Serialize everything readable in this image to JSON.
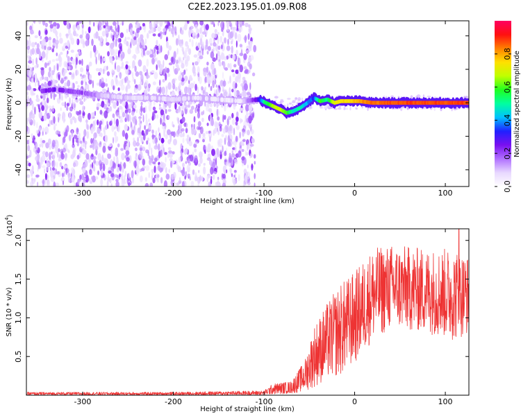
{
  "title": "C2E2.2023.195.01.09.R08",
  "chart_data": [
    {
      "type": "heatmap",
      "xlabel": "Height of straight line (km)",
      "ylabel": "Frequency (Hz)",
      "xlim": [
        -362,
        126
      ],
      "ylim": [
        -50,
        49
      ],
      "xticks": [
        -300,
        -200,
        -100,
        0,
        100
      ],
      "yticks": [
        -40,
        -20,
        0,
        20,
        40
      ],
      "colorbar": {
        "label": "Normalized spectral amplitude",
        "range": [
          0,
          1
        ],
        "ticks": [
          "0.0",
          "0.2",
          "0.4",
          "0.6",
          "0.8"
        ],
        "colormap": [
          "#ffffff",
          "#e8d8ff",
          "#b070ff",
          "#7a10f0",
          "#2020ff",
          "#00c0ff",
          "#00ffa0",
          "#20ff20",
          "#c0ff00",
          "#ffe000",
          "#ff8000",
          "#ff1010",
          "#ff0060"
        ]
      },
      "noise_region_km": [
        -362,
        -110
      ],
      "ridge": [
        {
          "x": -345,
          "y": 7,
          "amp": 0.22
        },
        {
          "x": -330,
          "y": 8,
          "amp": 0.25
        },
        {
          "x": -315,
          "y": 7,
          "amp": 0.2
        },
        {
          "x": -300,
          "y": 6,
          "amp": 0.2
        },
        {
          "x": -290,
          "y": 5,
          "amp": 0.16
        },
        {
          "x": -270,
          "y": 4,
          "amp": 0.08
        },
        {
          "x": -250,
          "y": 3,
          "amp": 0.08
        },
        {
          "x": -225,
          "y": 3,
          "amp": 0.05
        },
        {
          "x": -200,
          "y": 2,
          "amp": 0.08
        },
        {
          "x": -175,
          "y": 3,
          "amp": 0.06
        },
        {
          "x": -150,
          "y": 2,
          "amp": 0.05
        },
        {
          "x": -125,
          "y": 1,
          "amp": 0.05
        },
        {
          "x": -105,
          "y": 2,
          "amp": 0.3
        },
        {
          "x": -98,
          "y": 0,
          "amp": 0.55
        },
        {
          "x": -90,
          "y": -2,
          "amp": 0.65
        },
        {
          "x": -82,
          "y": -4,
          "amp": 0.7
        },
        {
          "x": -75,
          "y": -6,
          "amp": 0.6
        },
        {
          "x": -68,
          "y": -5,
          "amp": 0.45
        },
        {
          "x": -60,
          "y": -3,
          "amp": 0.5
        },
        {
          "x": -52,
          "y": 0,
          "amp": 0.4
        },
        {
          "x": -45,
          "y": 3,
          "amp": 0.35
        },
        {
          "x": -38,
          "y": 1,
          "amp": 0.6
        },
        {
          "x": -30,
          "y": 2,
          "amp": 0.5
        },
        {
          "x": -22,
          "y": 0,
          "amp": 0.7
        },
        {
          "x": -15,
          "y": 1,
          "amp": 0.75
        },
        {
          "x": -5,
          "y": 1,
          "amp": 0.75
        },
        {
          "x": 5,
          "y": 1,
          "amp": 0.8
        },
        {
          "x": 20,
          "y": 0,
          "amp": 0.85
        },
        {
          "x": 60,
          "y": 0,
          "amp": 0.88
        },
        {
          "x": 126,
          "y": 0,
          "amp": 0.88
        }
      ]
    },
    {
      "type": "line",
      "xlabel": "Height of straight line (km)",
      "ylabel": "SNR (10 * v/v)",
      "y_scale_label": "(x10",
      "y_scale_exp": "4",
      "y_scale_close": ")",
      "xlim": [
        -362,
        126
      ],
      "ylim": [
        0,
        2.15
      ],
      "xticks": [
        -300,
        -200,
        -100,
        0,
        100
      ],
      "yticks": [
        0.5,
        1.0,
        1.5,
        2.0
      ],
      "ytick_labels": [
        "0.5",
        "1.0",
        "1.5",
        "2.0"
      ],
      "color": "#ee3333",
      "envelope": [
        {
          "x": -362,
          "mean": 0.02,
          "spread": 0.02
        },
        {
          "x": -200,
          "mean": 0.02,
          "spread": 0.02
        },
        {
          "x": -100,
          "mean": 0.03,
          "spread": 0.03
        },
        {
          "x": -90,
          "mean": 0.08,
          "spread": 0.07
        },
        {
          "x": -70,
          "mean": 0.1,
          "spread": 0.08
        },
        {
          "x": -55,
          "mean": 0.25,
          "spread": 0.2
        },
        {
          "x": -45,
          "mean": 0.5,
          "spread": 0.4
        },
        {
          "x": -30,
          "mean": 0.7,
          "spread": 0.5
        },
        {
          "x": -15,
          "mean": 0.85,
          "spread": 0.6
        },
        {
          "x": 0,
          "mean": 1.0,
          "spread": 0.6
        },
        {
          "x": 20,
          "mean": 1.3,
          "spread": 0.6
        },
        {
          "x": 40,
          "mean": 1.4,
          "spread": 0.55
        },
        {
          "x": 80,
          "mean": 1.35,
          "spread": 0.55
        },
        {
          "x": 110,
          "mean": 1.3,
          "spread": 0.6
        },
        {
          "x": 126,
          "mean": 1.3,
          "spread": 0.5
        }
      ],
      "peak": {
        "x": 115,
        "y": 2.15
      }
    }
  ]
}
